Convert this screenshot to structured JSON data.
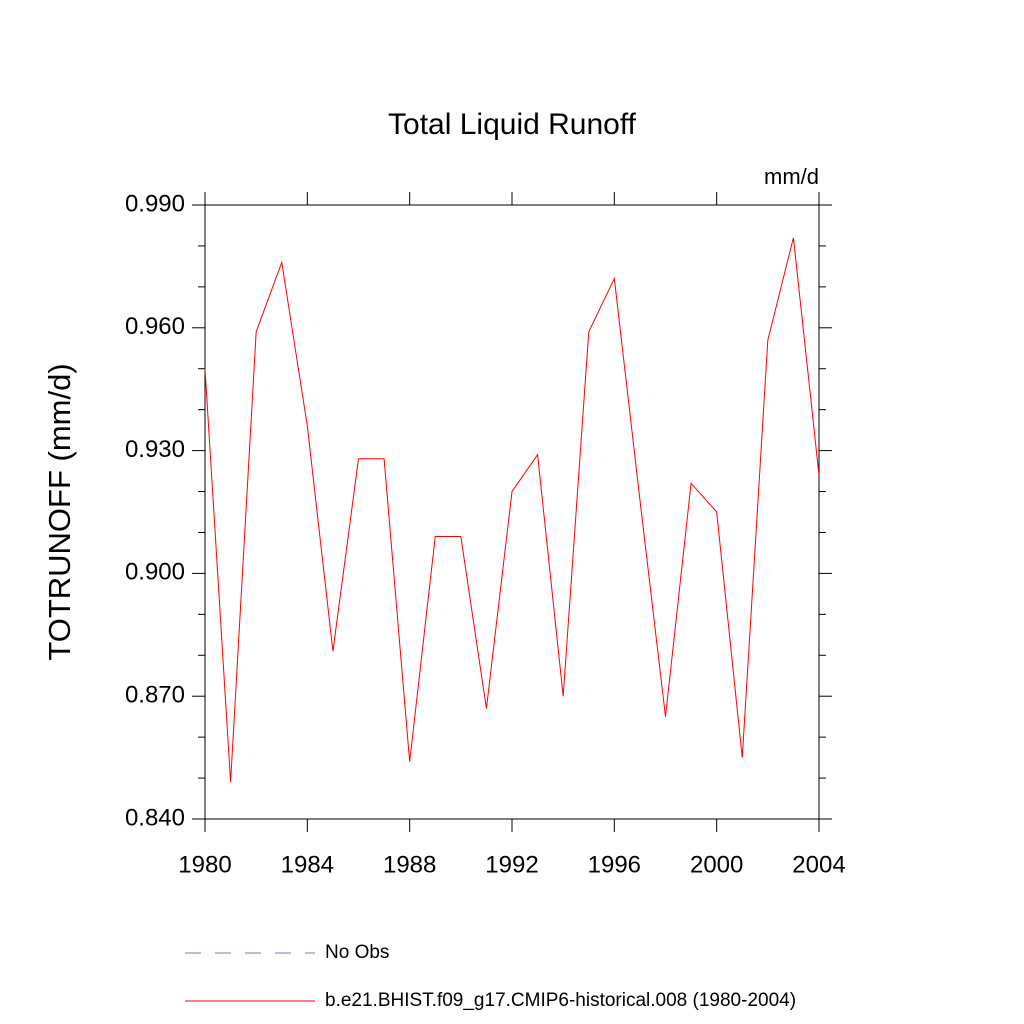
{
  "chart_data": {
    "type": "line",
    "title": "Total Liquid Runoff",
    "units": "mm/d",
    "y_label": "TOTRUNOFF  (mm/d)",
    "x": [
      1980,
      1981,
      1982,
      1983,
      1984,
      1985,
      1986,
      1987,
      1988,
      1989,
      1990,
      1991,
      1992,
      1993,
      1994,
      1995,
      1996,
      1997,
      1998,
      1999,
      2000,
      2001,
      2002,
      2003,
      2004
    ],
    "series": [
      {
        "name": "b.e21.BHIST.f09_g17.CMIP6-historical.008 (1980-2004)",
        "color": "#ff0000",
        "dash": "solid",
        "values": [
          0.95,
          0.849,
          0.959,
          0.976,
          0.936,
          0.881,
          0.928,
          0.928,
          0.854,
          0.909,
          0.909,
          0.867,
          0.92,
          0.929,
          0.87,
          0.959,
          0.972,
          0.918,
          0.865,
          0.922,
          0.915,
          0.855,
          0.957,
          0.982,
          0.924
        ]
      }
    ],
    "legend_extra": [
      {
        "name": "No Obs",
        "color": "#7b70c8",
        "dash": "dashed"
      }
    ],
    "xlim": [
      1980,
      2004
    ],
    "xticks": [
      1980,
      1984,
      1988,
      1992,
      1996,
      2000,
      2004
    ],
    "ylim": [
      0.84,
      0.99
    ],
    "yticks": [
      {
        "value": 0.84,
        "label": "0.840"
      },
      {
        "value": 0.87,
        "label": "0.870"
      },
      {
        "value": 0.9,
        "label": "0.900"
      },
      {
        "value": 0.93,
        "label": "0.930"
      },
      {
        "value": 0.96,
        "label": "0.960"
      },
      {
        "value": 0.99,
        "label": "0.990"
      }
    ],
    "yminorticks": [
      0.85,
      0.86,
      0.88,
      0.89,
      0.91,
      0.92,
      0.94,
      0.95,
      0.97,
      0.98
    ],
    "grid": false
  }
}
